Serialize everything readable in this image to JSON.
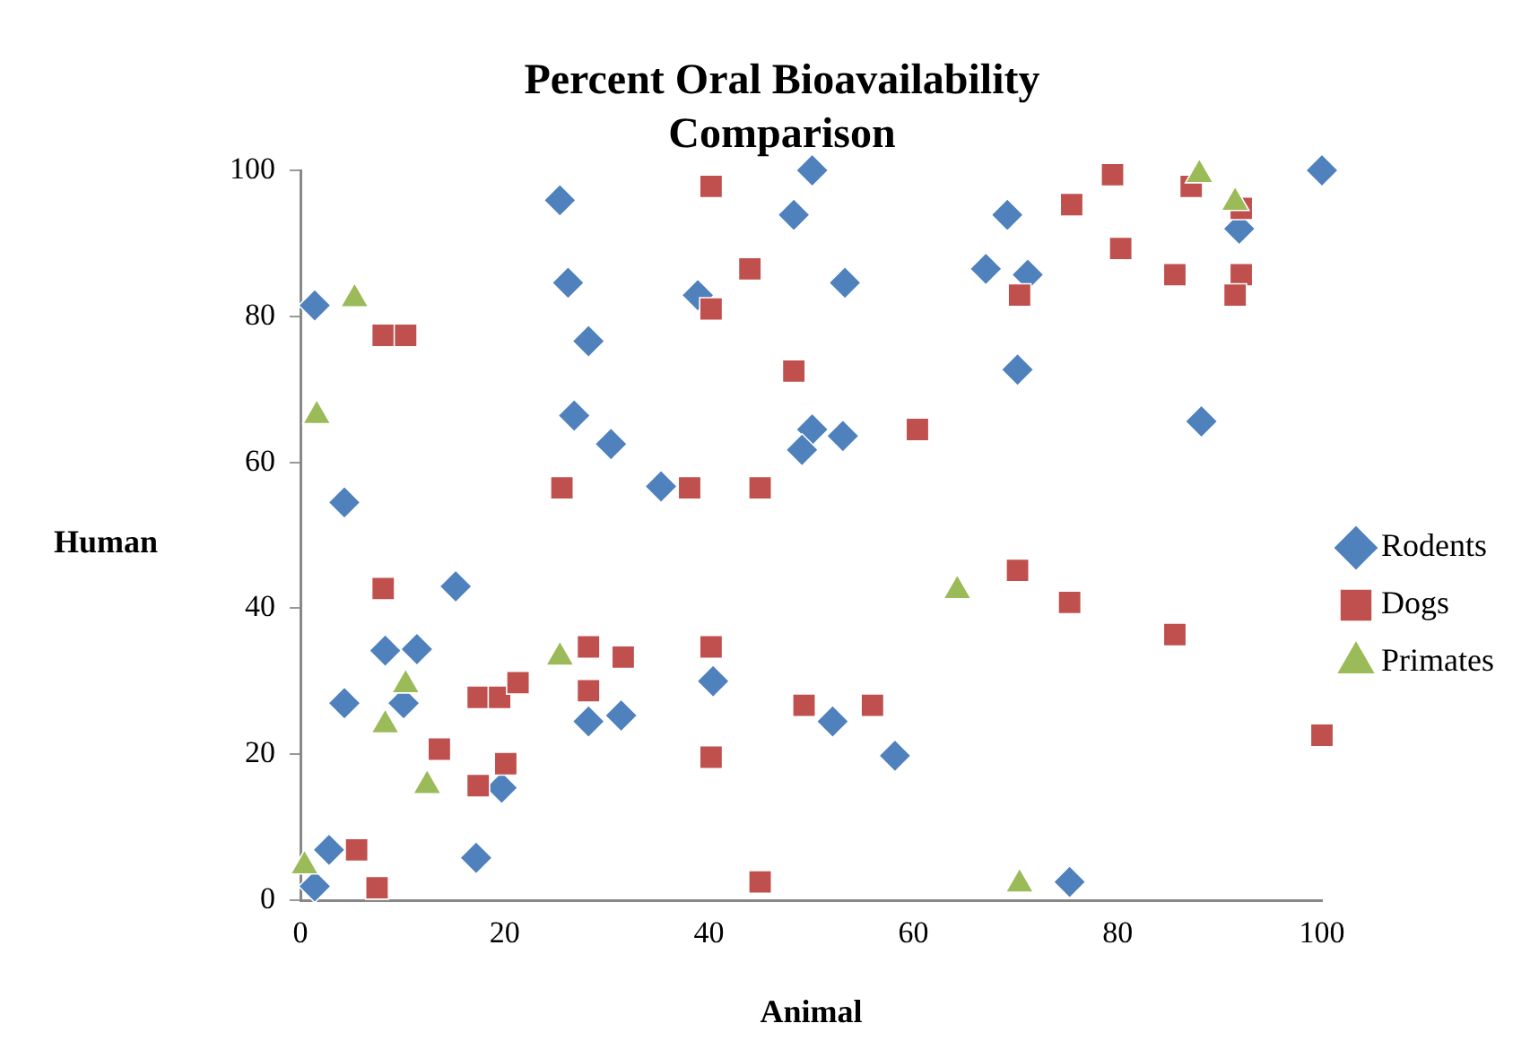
{
  "chart_data": {
    "type": "scatter",
    "title": "Percent Oral Bioavailability Comparison",
    "xlabel": "Animal",
    "ylabel": "Human",
    "xlim": [
      0,
      100
    ],
    "xticks": [
      0,
      20,
      40,
      60,
      80,
      100
    ],
    "ylim": [
      0,
      100
    ],
    "yticks": [
      0,
      20,
      40,
      60,
      80,
      100
    ],
    "grid": false,
    "legend": "right",
    "series": [
      {
        "name": "Rodents",
        "color": "#4f81bd",
        "marker": "diamond",
        "x": [
          1.4,
          25.4,
          26.2,
          28.2,
          26.8,
          30.4,
          4.3,
          35.3,
          50.1,
          48.3,
          38.9,
          53.3,
          69.2,
          67.1,
          71.2,
          70.2,
          100,
          91.9,
          88.2,
          50.1,
          49.1,
          53.1,
          15.2,
          8.3,
          11.4,
          4.3,
          10.1,
          40.4,
          28.2,
          31.4,
          52.1,
          58.2,
          2.8,
          1.4,
          17.2,
          75.3,
          19.7
        ],
        "values": [
          81.5,
          95.9,
          84.6,
          76.6,
          66.4,
          62.5,
          54.5,
          56.7,
          100,
          93.9,
          82.9,
          84.6,
          93.9,
          86.5,
          85.7,
          72.7,
          100,
          92,
          65.6,
          64.5,
          61.7,
          63.6,
          43,
          34.2,
          34.4,
          27,
          27,
          30,
          24.5,
          25.3,
          24.5,
          19.8,
          6.9,
          1.9,
          5.8,
          2.5,
          15.4
        ]
      },
      {
        "name": "Dogs",
        "color": "#c0504d",
        "marker": "square",
        "x": [
          8.1,
          10.3,
          25.6,
          40.2,
          40.2,
          44,
          38.1,
          45,
          48.3,
          60.4,
          75.5,
          79.5,
          80.3,
          70.4,
          85.6,
          87.2,
          92.1,
          91.5,
          92.1,
          8.1,
          70.2,
          75.3,
          85.6,
          100,
          40.2,
          40.2,
          49.3,
          56,
          45,
          28.2,
          31.6,
          17.4,
          19.5,
          21.3,
          28.2,
          13.6,
          17.4,
          20.1,
          5.5,
          7.5
        ],
        "values": [
          77.4,
          77.4,
          56.5,
          97.8,
          81,
          86.5,
          56.5,
          56.5,
          72.5,
          64.5,
          95.3,
          99.4,
          89.3,
          82.9,
          85.7,
          97.8,
          85.7,
          82.9,
          94.8,
          42.7,
          45.2,
          40.8,
          36.4,
          22.6,
          34.7,
          19.6,
          26.7,
          26.7,
          2.5,
          34.7,
          33.3,
          27.8,
          27.8,
          29.8,
          28.7,
          20.7,
          15.7,
          18.7,
          6.9,
          1.7
        ]
      },
      {
        "name": "Primates",
        "color": "#9bbb59",
        "marker": "triangle",
        "x": [
          5.3,
          1.6,
          88,
          91.5,
          64.3,
          70.4,
          25.4,
          10.3,
          8.3,
          12.4,
          0.4
        ],
        "values": [
          82.4,
          66.4,
          99.4,
          95.6,
          42.4,
          2.2,
          33.3,
          29.5,
          24,
          15.7,
          4.7
        ]
      }
    ]
  }
}
